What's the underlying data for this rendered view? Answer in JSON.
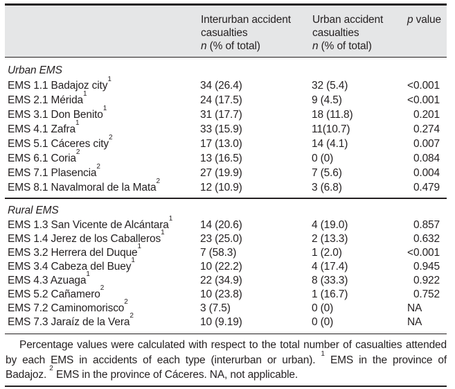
{
  "colors": {
    "header_bg": "#e5e6e7",
    "text": "#231f20"
  },
  "table": {
    "header": {
      "interurban": {
        "title": "Interurban accident casualties",
        "n_label": "n",
        "n_suffix": " (% of total)"
      },
      "urban": {
        "title": "Urban accident casualties",
        "n_label": "n",
        "n_suffix": " (% of total)"
      },
      "p": {
        "p_label": "p",
        "suffix": " value"
      }
    },
    "sections": [
      {
        "label": "Urban EMS",
        "rows": [
          {
            "name": "EMS 1.1 Badajoz city",
            "sup": "1",
            "interurban": "34 (26.4)",
            "urban": "32 (5.4)",
            "p": "<0.001"
          },
          {
            "name": "EMS 2.1 Mérida",
            "sup": "1",
            "interurban": "24 (17.5)",
            "urban": "9 (4.5)",
            "p": "<0.001"
          },
          {
            "name": "EMS 3.1 Don Benito",
            "sup": "1",
            "interurban": "31 (17.7)",
            "urban": "18 (11.8)",
            "p": "0.201"
          },
          {
            "name": "EMS 4.1 Zafra",
            "sup": "1",
            "interurban": "33 (15.9)",
            "urban": "11(10.7)",
            "p": "0.274"
          },
          {
            "name": "EMS 5.1 Cáceres city",
            "sup": "2",
            "interurban": "17 (13.0)",
            "urban": "14 (4.1)",
            "p": "0.007"
          },
          {
            "name": "EMS 6.1 Coria",
            "sup": "2",
            "interurban": "13 (16.5)",
            "urban": "0 (0)",
            "p": "0.084"
          },
          {
            "name": "EMS 7.1 Plasencia",
            "sup": "2",
            "interurban": "27 (19.9)",
            "urban": "7 (5.6)",
            "p": "0.004"
          },
          {
            "name": "EMS 8.1 Navalmoral de la Mata",
            "sup": "2",
            "interurban": "12 (10.9)",
            "urban": "3 (6.8)",
            "p": "0.479"
          }
        ]
      },
      {
        "label": "Rural EMS",
        "rows": [
          {
            "name": "EMS 1.3 San Vicente de Alcántara",
            "sup": "1",
            "interurban": "14 (20.6)",
            "urban": "4 (19.0)",
            "p": "0.857"
          },
          {
            "name": "EMS 1.4 Jerez de los Caballeros",
            "sup": "1",
            "interurban": "23 (25.0)",
            "urban": "2 (13.3)",
            "p": "0.632"
          },
          {
            "name": "EMS 3.2 Herrera del Duque",
            "sup": "1",
            "interurban": "7 (58.3)",
            "urban": "1 (2.0)",
            "p": "<0.001"
          },
          {
            "name": "EMS 3.4 Cabeza del Buey",
            "sup": "1",
            "interurban": "10 (22.2)",
            "urban": "4 (17.4)",
            "p": "0.945"
          },
          {
            "name": "EMS 4.3 Azuaga",
            "sup": "1",
            "interurban": "22 (34.9)",
            "urban": "8 (33.3)",
            "p": "0.922"
          },
          {
            "name": "EMS 5.2 Cañamero",
            "sup": "2",
            "interurban": "10 (23.8)",
            "urban": "1 (16.7)",
            "p": "0.752"
          },
          {
            "name": "EMS 7.2 Caminomorisco",
            "sup": "2",
            "interurban": "3 (7.5)",
            "urban": "0 (0)",
            "p": "NA"
          },
          {
            "name": "EMS 7.3 Jaraíz de la Vera",
            "sup": "2",
            "interurban": "10 (9.19)",
            "urban": "0 (0)",
            "p": "NA"
          }
        ]
      }
    ]
  },
  "footer": {
    "part1": "Percentage values were calculated with respect to the total number of casualties attended by each EMS in accidents of each type (interurban or urban). ",
    "sup1": "1",
    "part2": " EMS in the province of Badajoz. ",
    "sup2": "2",
    "part3": " EMS in the province of Cáceres. NA, not applicable."
  }
}
